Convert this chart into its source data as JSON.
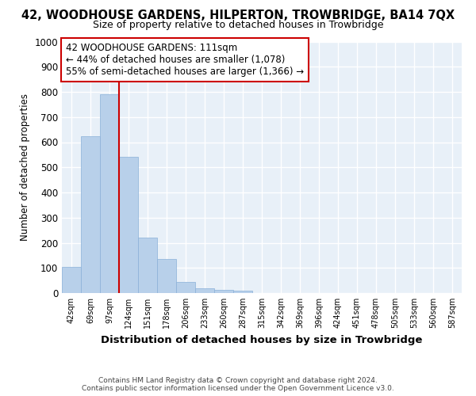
{
  "title": "42, WOODHOUSE GARDENS, HILPERTON, TROWBRIDGE, BA14 7QX",
  "subtitle": "Size of property relative to detached houses in Trowbridge",
  "xlabel": "Distribution of detached houses by size in Trowbridge",
  "ylabel": "Number of detached properties",
  "bar_color": "#b8d0ea",
  "bar_edge_color": "#8ab0d8",
  "background_color": "#e8f0f8",
  "grid_color": "#ffffff",
  "categories": [
    "42sqm",
    "69sqm",
    "97sqm",
    "124sqm",
    "151sqm",
    "178sqm",
    "206sqm",
    "233sqm",
    "260sqm",
    "287sqm",
    "315sqm",
    "342sqm",
    "369sqm",
    "396sqm",
    "424sqm",
    "451sqm",
    "478sqm",
    "505sqm",
    "533sqm",
    "560sqm",
    "587sqm"
  ],
  "values": [
    103,
    623,
    790,
    542,
    220,
    135,
    45,
    18,
    13,
    10,
    0,
    0,
    0,
    0,
    0,
    0,
    0,
    0,
    0,
    0,
    0
  ],
  "ylim": [
    0,
    1000
  ],
  "yticks": [
    0,
    100,
    200,
    300,
    400,
    500,
    600,
    700,
    800,
    900,
    1000
  ],
  "property_line_x": 2.5,
  "property_label": "42 WOODHOUSE GARDENS: 111sqm",
  "annotation_line1": "← 44% of detached houses are smaller (1,078)",
  "annotation_line2": "55% of semi-detached houses are larger (1,366) →",
  "annotation_box_color": "#ffffff",
  "annotation_box_edge": "#cc0000",
  "property_line_color": "#cc0000",
  "footer1": "Contains HM Land Registry data © Crown copyright and database right 2024.",
  "footer2": "Contains public sector information licensed under the Open Government Licence v3.0."
}
